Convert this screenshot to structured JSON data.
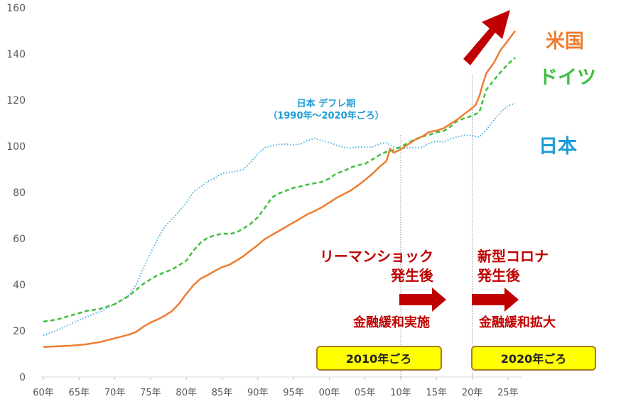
{
  "chart_data": {
    "type": "line",
    "title": "",
    "xlabel": "",
    "ylabel": "",
    "xlim": [
      1960,
      2027
    ],
    "ylim": [
      0,
      160
    ],
    "grid": false,
    "x_ticks": [
      {
        "value": 1960,
        "label": "60年"
      },
      {
        "value": 1965,
        "label": "65年"
      },
      {
        "value": 1970,
        "label": "70年"
      },
      {
        "value": 1975,
        "label": "75年"
      },
      {
        "value": 1980,
        "label": "80年"
      },
      {
        "value": 1985,
        "label": "85年"
      },
      {
        "value": 1990,
        "label": "90年"
      },
      {
        "value": 1995,
        "label": "95年"
      },
      {
        "value": 2000,
        "label": "00年"
      },
      {
        "value": 2005,
        "label": "05年"
      },
      {
        "value": 2010,
        "label": "10年"
      },
      {
        "value": 2015,
        "label": "15年"
      },
      {
        "value": 2020,
        "label": "20年"
      },
      {
        "value": 2025,
        "label": "25年"
      }
    ],
    "y_ticks": [
      {
        "value": 0,
        "label": "0"
      },
      {
        "value": 20,
        "label": "20"
      },
      {
        "value": 40,
        "label": "40"
      },
      {
        "value": 60,
        "label": "60"
      },
      {
        "value": 80,
        "label": "80"
      },
      {
        "value": 100,
        "label": "100"
      },
      {
        "value": 120,
        "label": "120"
      },
      {
        "value": 140,
        "label": "140"
      },
      {
        "value": 160,
        "label": "160"
      }
    ],
    "series": [
      {
        "name": "米国",
        "color": "#ED7D31",
        "style": "solid",
        "x": [
          1960,
          1962,
          1964,
          1966,
          1968,
          1970,
          1972,
          1973,
          1974,
          1975,
          1976,
          1977,
          1978,
          1979,
          1980,
          1981,
          1982,
          1983,
          1984,
          1985,
          1986,
          1987,
          1988,
          1989,
          1990,
          1991,
          1992,
          1993,
          1994,
          1995,
          1996,
          1997,
          1998,
          1999,
          2000,
          2001,
          2002,
          2003,
          2004,
          2005,
          2006,
          2007,
          2008,
          2008.5,
          2009,
          2010,
          2011,
          2012,
          2013,
          2014,
          2015,
          2016,
          2017,
          2018,
          2019,
          2020,
          2020.5,
          2021,
          2021.5,
          2022,
          2023,
          2024,
          2025,
          2026
        ],
        "values": [
          13,
          13.3,
          13.6,
          14.2,
          15.2,
          16.8,
          18.4,
          19.6,
          21.8,
          23.6,
          25,
          26.6,
          28.6,
          31.8,
          36,
          39.8,
          42.6,
          44.2,
          46,
          47.6,
          48.6,
          50.4,
          52.4,
          54.8,
          57.2,
          59.8,
          61.6,
          63.4,
          65.2,
          67,
          68.8,
          70.6,
          72,
          73.6,
          75.6,
          77.6,
          79.2,
          80.8,
          83,
          85.4,
          88,
          91,
          93.6,
          99,
          97.2,
          98.6,
          100.8,
          102.8,
          104.2,
          106.2,
          106.8,
          107.8,
          109.8,
          111.8,
          114.2,
          116.6,
          118,
          121.8,
          127.2,
          131.8,
          136,
          141.8,
          145.8,
          150
        ]
      },
      {
        "name": "ドイツ",
        "color": "#3EBF3E",
        "style": "dashed",
        "x": [
          1960,
          1962,
          1964,
          1966,
          1968,
          1970,
          1972,
          1974,
          1976,
          1978,
          1980,
          1981,
          1982,
          1983,
          1984,
          1985,
          1986,
          1987,
          1988,
          1989,
          1990,
          1991,
          1992,
          1993,
          1994,
          1995,
          1996,
          1997,
          1998,
          1999,
          2000,
          2001,
          2002,
          2003,
          2004,
          2005,
          2006,
          2007,
          2008,
          2009,
          2010,
          2011,
          2012,
          2013,
          2014,
          2015,
          2016,
          2017,
          2018,
          2019,
          2020,
          2021,
          2021.5,
          2022,
          2023,
          2024,
          2025,
          2026
        ],
        "values": [
          24,
          25,
          26.8,
          28.6,
          29.6,
          31.6,
          35.2,
          40.4,
          44.2,
          46.6,
          50.4,
          54.8,
          58.2,
          60.4,
          61.4,
          62.2,
          62,
          62.6,
          64.4,
          66.4,
          69.2,
          73.4,
          77.8,
          79.6,
          80.8,
          82,
          82.6,
          83.4,
          84,
          84.6,
          86,
          88.2,
          89.2,
          90.8,
          91.8,
          92.4,
          94.2,
          96.2,
          97.6,
          98.4,
          99.8,
          101.4,
          103,
          104.2,
          105,
          106,
          106.6,
          108.6,
          111.2,
          112.2,
          113.2,
          114.8,
          120,
          124.6,
          128.6,
          132.2,
          135.6,
          138.4
        ]
      },
      {
        "name": "日本",
        "color": "#4FB3E0",
        "style": "dotted",
        "x": [
          1960,
          1962,
          1964,
          1966,
          1968,
          1970,
          1972,
          1973,
          1974,
          1975,
          1976,
          1977,
          1978,
          1979,
          1980,
          1981,
          1982,
          1983,
          1984,
          1985,
          1986,
          1987,
          1988,
          1989,
          1990,
          1991,
          1992,
          1993,
          1994,
          1995,
          1996,
          1997,
          1998,
          1999,
          2000,
          2001,
          2002,
          2003,
          2004,
          2005,
          2006,
          2007,
          2008,
          2009,
          2010,
          2011,
          2012,
          2013,
          2014,
          2015,
          2016,
          2017,
          2018,
          2019,
          2020,
          2021,
          2022,
          2023,
          2024,
          2025,
          2026
        ],
        "values": [
          18,
          20.4,
          23.2,
          26,
          28.4,
          31.6,
          35.4,
          40,
          47.4,
          53.6,
          59.8,
          65.2,
          68.4,
          71.8,
          75.4,
          80.2,
          82.4,
          84.8,
          86.2,
          88.2,
          88.6,
          89.2,
          90,
          93,
          96.8,
          99.4,
          100.2,
          100.8,
          101,
          100.6,
          101,
          102.6,
          103.4,
          102.4,
          101.6,
          100.4,
          99.6,
          99.2,
          99.8,
          99.6,
          99.6,
          101,
          101.6,
          99.6,
          98.8,
          99.4,
          99.4,
          99.6,
          101.2,
          102.2,
          101.8,
          103.2,
          104.2,
          104.8,
          104.6,
          104,
          107.2,
          111.2,
          114.8,
          117.6,
          118.6
        ]
      }
    ],
    "series_labels": [
      "米国",
      "ドイツ",
      "日本"
    ],
    "annotations": {
      "deflation_title": "日本 デフレ期",
      "deflation_period": "（1990年～2020年ごろ）",
      "lehman_line1": "リーマンショック",
      "lehman_line2": "発生後",
      "lehman_action": "金融緩和実施",
      "lehman_box": "2010年ごろ",
      "corona_line1": "新型コロナ",
      "corona_line2": "発生後",
      "corona_action": "金融緩和拡大",
      "corona_box": "2020年ごろ"
    },
    "reference_lines_x": [
      2010,
      2020
    ],
    "colors": {
      "accent_red": "#C00000",
      "box_fill": "#FFFF00",
      "box_border": "#A87D1E",
      "annotation_blue": "#1E9CD7"
    }
  }
}
